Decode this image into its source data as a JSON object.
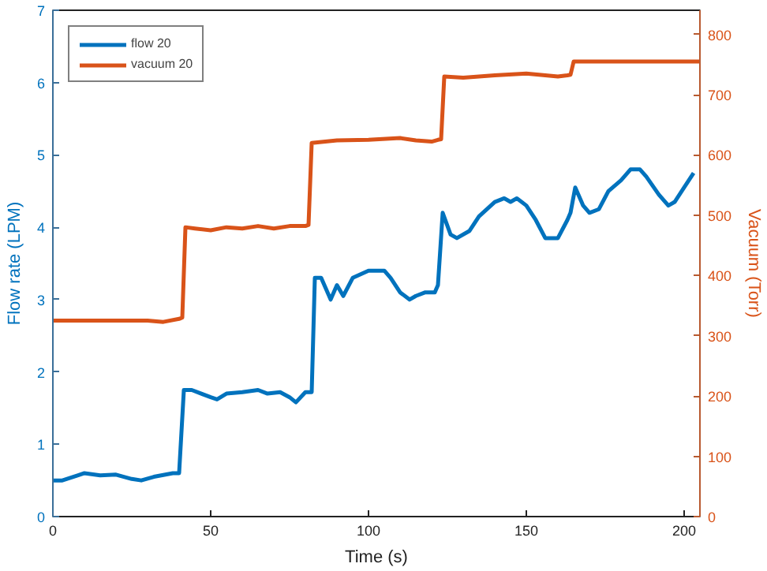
{
  "chart_data": {
    "type": "line",
    "xlabel": "Time (s)",
    "ylabel": "Flow rate (LPM)",
    "y2label": "Vacuum (Torr)",
    "xlim": [
      0,
      205
    ],
    "xticks": [
      0,
      50,
      100,
      150,
      200
    ],
    "ylim": [
      0,
      7
    ],
    "yticks": [
      0,
      1,
      2,
      3,
      4,
      5,
      6,
      7
    ],
    "y2lim": [
      0,
      840
    ],
    "y2ticks": [
      0,
      100,
      200,
      300,
      400,
      500,
      600,
      700,
      800
    ],
    "grid": false,
    "legend": "top left",
    "line_style": "solid",
    "marker": "none",
    "series": [
      {
        "name": "flow 20",
        "color": "#0072bd",
        "x": [
          0,
          3,
          8,
          10,
          15,
          20,
          25,
          28,
          32,
          38,
          40,
          41.5,
          44,
          50,
          52,
          55,
          60,
          65,
          68,
          72,
          75,
          77,
          80,
          82,
          83,
          85,
          88,
          90,
          92,
          95,
          100,
          105,
          107,
          110,
          113,
          115,
          118,
          121,
          122,
          123.5,
          126,
          128,
          132,
          135,
          140,
          143,
          145,
          147,
          150,
          153,
          156,
          160,
          163,
          164,
          165.5,
          168,
          170,
          173,
          176,
          180,
          183,
          186,
          188,
          192,
          195,
          197,
          200,
          203
        ],
        "values": [
          0.5,
          0.5,
          0.57,
          0.6,
          0.57,
          0.58,
          0.52,
          0.5,
          0.55,
          0.6,
          0.6,
          1.75,
          1.75,
          1.65,
          1.62,
          1.7,
          1.72,
          1.75,
          1.7,
          1.72,
          1.65,
          1.58,
          1.72,
          1.72,
          3.3,
          3.3,
          3.0,
          3.2,
          3.05,
          3.3,
          3.4,
          3.4,
          3.3,
          3.1,
          3.0,
          3.05,
          3.1,
          3.1,
          3.2,
          4.2,
          3.9,
          3.85,
          3.95,
          4.15,
          4.35,
          4.4,
          4.35,
          4.4,
          4.3,
          4.1,
          3.85,
          3.85,
          4.1,
          4.2,
          4.55,
          4.3,
          4.2,
          4.25,
          4.5,
          4.65,
          4.8,
          4.8,
          4.7,
          4.45,
          4.3,
          4.35,
          4.55,
          4.75
        ]
      },
      {
        "name": "vacuum 20",
        "color": "#d95319",
        "axis": "y2",
        "x": [
          0,
          10,
          20,
          30,
          35,
          40,
          41,
          42,
          45,
          50,
          55,
          60,
          65,
          70,
          75,
          80,
          81,
          82,
          90,
          100,
          110,
          115,
          120,
          122,
          123,
          124,
          130,
          140,
          150,
          160,
          163,
          164,
          165,
          180,
          205
        ],
        "values": [
          325,
          325,
          325,
          325,
          323,
          328,
          330,
          480,
          478,
          475,
          480,
          478,
          482,
          478,
          482,
          482,
          484,
          620,
          624,
          625,
          628,
          624,
          622,
          625,
          626,
          730,
          728,
          732,
          735,
          730,
          732,
          733,
          755,
          755,
          755
        ]
      }
    ]
  }
}
